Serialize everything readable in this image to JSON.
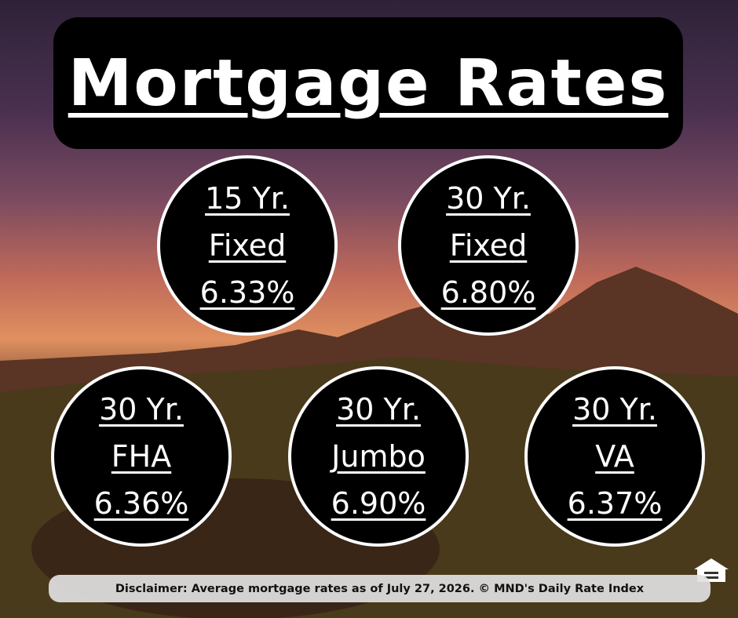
{
  "header": {
    "title": "Mortgage Rates"
  },
  "rates": [
    {
      "term": "15 Yr.",
      "type": "Fixed",
      "rate": "6.33%"
    },
    {
      "term": "30 Yr.",
      "type": "Fixed",
      "rate": "6.80%"
    },
    {
      "term": "30 Yr.",
      "type": "FHA",
      "rate": "6.36%"
    },
    {
      "term": "30 Yr.",
      "type": "Jumbo",
      "rate": "6.90%"
    },
    {
      "term": "30 Yr.",
      "type": "VA",
      "rate": "6.37%"
    }
  ],
  "footer": {
    "disclaimer": "Disclaimer: Average mortgage rates as of July 27, 2026. © MND's Daily Rate Index"
  }
}
